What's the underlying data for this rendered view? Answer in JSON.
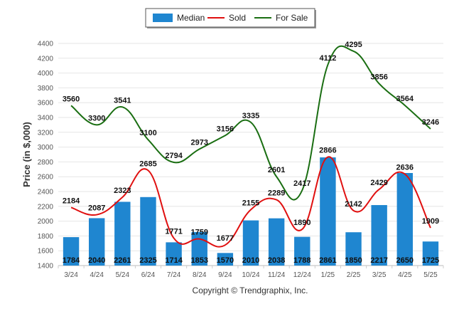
{
  "chart_data": {
    "type": "bar",
    "ylabel": "Price (in $,000)",
    "ylim": [
      1400,
      4400
    ],
    "yticks": [
      1400,
      1600,
      1800,
      2000,
      2200,
      2400,
      2600,
      2800,
      3000,
      3200,
      3400,
      3600,
      3800,
      4000,
      4200,
      4400
    ],
    "grid": true,
    "legend_position": "top-center",
    "categories": [
      "3/24",
      "4/24",
      "5/24",
      "6/24",
      "7/24",
      "8/24",
      "9/24",
      "10/24",
      "11/24",
      "12/24",
      "1/25",
      "2/25",
      "3/25",
      "4/25",
      "5/25"
    ],
    "series": [
      {
        "name": "Median",
        "kind": "bar",
        "color": "#1f86d0",
        "values": [
          1784,
          2040,
          2261,
          2325,
          1714,
          1853,
          1570,
          2010,
          2038,
          1788,
          2861,
          1850,
          2217,
          2650,
          1725
        ]
      },
      {
        "name": "Sold",
        "kind": "line",
        "color": "#e01010",
        "values": [
          2184,
          2087,
          2323,
          2685,
          1771,
          1759,
          1677,
          2155,
          2289,
          1890,
          2866,
          2142,
          2429,
          2636,
          1909
        ]
      },
      {
        "name": "For Sale",
        "kind": "line",
        "color": "#1a6e12",
        "values": [
          3560,
          3300,
          3541,
          3100,
          2794,
          2973,
          3156,
          3335,
          2601,
          2417,
          4112,
          4295,
          3856,
          3564,
          3246
        ]
      }
    ]
  },
  "footer": {
    "copyright": "Copyright © Trendgraphix, Inc."
  }
}
